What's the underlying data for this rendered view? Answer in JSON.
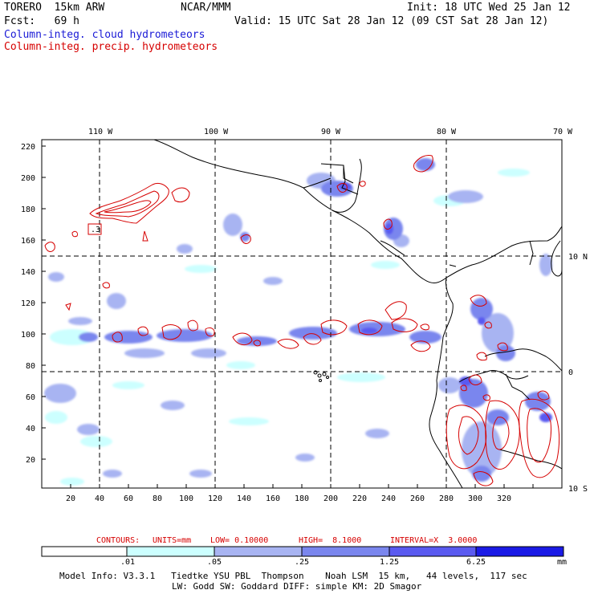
{
  "header": {
    "model": "TORERO  15km ARW",
    "org": "NCAR/MMM",
    "init": "Init: 18 UTC Wed 25 Jan 12",
    "fcst": "Fcst:   69 h",
    "valid": "Valid: 15 UTC Sat 28 Jan 12 (09 CST Sat 28 Jan 12)",
    "legend_cloud": "Column-integ. cloud hydrometeors",
    "legend_precip": "Column-integ. precip. hydrometeors"
  },
  "colors": {
    "cloud": "#1a1ad6",
    "precip": "#d60000",
    "shade_1": "#ccffff",
    "shade_2": "#a8b4f2",
    "shade_3": "#7a86ee",
    "shade_4": "#5a5af0",
    "shade_5": "#1a1ae6"
  },
  "axes": {
    "lon_labels": [
      "110 W",
      "100 W",
      "90 W",
      "80 W",
      "70 W"
    ],
    "lat_labels": [
      "10 N",
      "0",
      "10 S"
    ],
    "x_ticks": [
      "20",
      "40",
      "60",
      "80",
      "100",
      "120",
      "140",
      "160",
      "180",
      "200",
      "220",
      "240",
      "260",
      "280",
      "300",
      "320"
    ],
    "y_ticks": [
      "20",
      "40",
      "60",
      "80",
      "100",
      "120",
      "140",
      "160",
      "180",
      "200",
      "220"
    ]
  },
  "contours": {
    "label": "CONTOURS:",
    "units": "UNITS=mm",
    "low": "LOW= 0.10000",
    "high": "HIGH=  8.1000",
    "interval": "INTERVAL=X  3.0000",
    "inline_label": ".3"
  },
  "colorbar": {
    "labels": [
      ".01",
      ".05",
      ".25",
      "1.25",
      "6.25"
    ],
    "units": "mm"
  },
  "footer": {
    "line1": "Model Info: V3.3.1   Tiedtke YSU PBL  Thompson    Noah LSM  15 km,   44 levels,  117 sec",
    "line2": "LW: Godd SW: Goddard DIFF: simple KM: 2D Smagor"
  }
}
